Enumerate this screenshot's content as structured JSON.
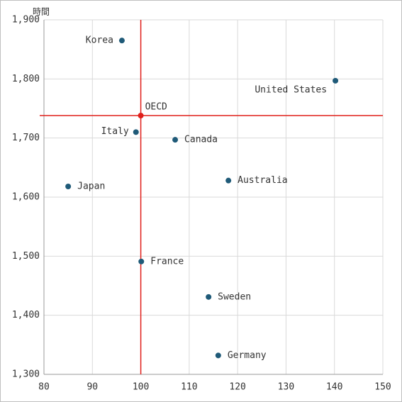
{
  "chart_data": {
    "type": "scatter",
    "y_label": "時間",
    "xlim": [
      80,
      150
    ],
    "xticks": [
      80,
      90,
      100,
      110,
      120,
      130,
      140,
      150
    ],
    "ylim": [
      1300,
      1900
    ],
    "yticks": [
      {
        "value": 1300,
        "label": "1,300"
      },
      {
        "value": 1400,
        "label": "1,400"
      },
      {
        "value": 1500,
        "label": "1,500"
      },
      {
        "value": 1600,
        "label": "1,600"
      },
      {
        "value": 1700,
        "label": "1,700"
      },
      {
        "value": 1800,
        "label": "1,800"
      },
      {
        "value": 1900,
        "label": "1,900"
      }
    ],
    "grid": true,
    "reference_color": "#e0201b",
    "points": [
      {
        "label": "Korea",
        "x": 96.1,
        "y": 1865,
        "color": "#1f5a78"
      },
      {
        "label": "United States",
        "x": 140.2,
        "y": 1797,
        "color": "#1f5a78"
      },
      {
        "label": "OECD",
        "x": 100,
        "y": 1738,
        "color": "#e0201b"
      },
      {
        "label": "Italy",
        "x": 99.0,
        "y": 1710,
        "color": "#1f5a78"
      },
      {
        "label": "Canada",
        "x": 107.1,
        "y": 1697,
        "color": "#1f5a78"
      },
      {
        "label": "Australia",
        "x": 118.1,
        "y": 1628,
        "color": "#1f5a78"
      },
      {
        "label": "Japan",
        "x": 85.0,
        "y": 1618,
        "color": "#1f5a78"
      },
      {
        "label": "France",
        "x": 100.1,
        "y": 1491,
        "color": "#1f5a78"
      },
      {
        "label": "Sweden",
        "x": 114,
        "y": 1431,
        "color": "#1f5a78"
      },
      {
        "label": "Germany",
        "x": 116,
        "y": 1332,
        "color": "#1f5a78"
      }
    ]
  }
}
